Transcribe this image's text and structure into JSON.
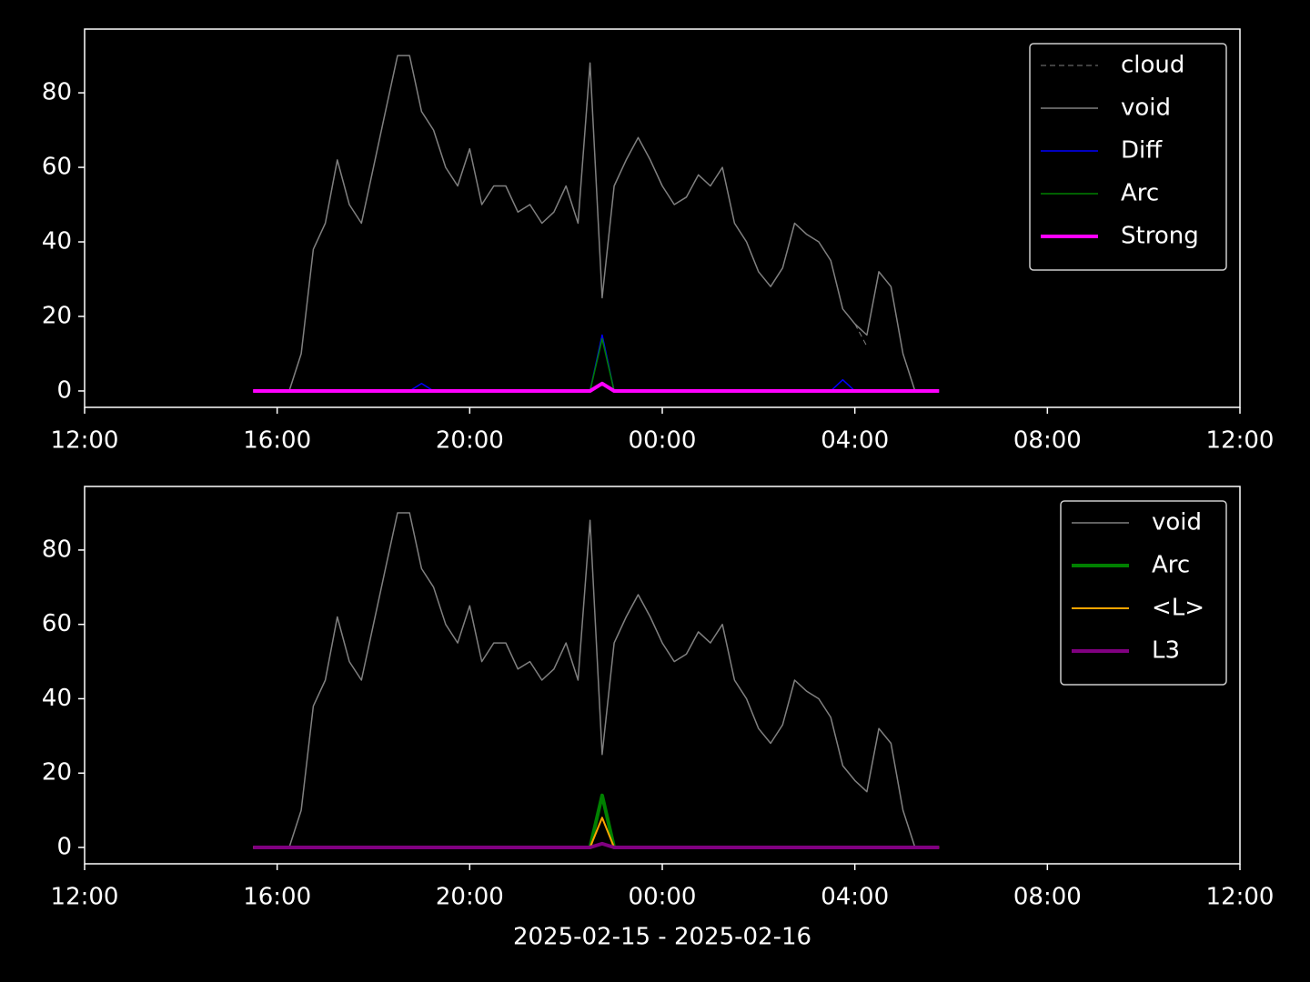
{
  "chart_data": [
    {
      "type": "line",
      "x": [
        15.5,
        15.75,
        16,
        16.25,
        16.5,
        16.75,
        17,
        17.25,
        17.5,
        17.75,
        18,
        18.25,
        18.5,
        18.75,
        19,
        19.25,
        19.5,
        19.75,
        20,
        20.25,
        20.5,
        20.75,
        21,
        21.25,
        21.5,
        21.75,
        22,
        22.25,
        22.5,
        22.75,
        23,
        23.25,
        23.5,
        23.75,
        24,
        24.25,
        24.5,
        24.75,
        25,
        25.25,
        25.5,
        25.75,
        26,
        26.25,
        26.5,
        26.75,
        27,
        27.25,
        27.5,
        27.75,
        28,
        28.25,
        28.5,
        28.75,
        29,
        29.25,
        29.5,
        29.75
      ],
      "series": [
        {
          "name": "cloud",
          "color": "#808080",
          "width": 1,
          "dashed": true,
          "values": [
            null,
            null,
            null,
            null,
            null,
            null,
            null,
            null,
            null,
            null,
            null,
            null,
            null,
            null,
            null,
            null,
            null,
            null,
            null,
            null,
            null,
            null,
            null,
            null,
            null,
            null,
            null,
            null,
            null,
            null,
            null,
            null,
            null,
            null,
            null,
            null,
            null,
            null,
            null,
            null,
            null,
            null,
            null,
            null,
            null,
            null,
            null,
            null,
            null,
            null,
            18,
            12,
            null,
            null,
            null,
            null,
            null,
            null
          ]
        },
        {
          "name": "void",
          "color": "#808080",
          "width": 1.5,
          "values": [
            0,
            0,
            0,
            0,
            10,
            38,
            45,
            62,
            50,
            45,
            60,
            75,
            90,
            90,
            75,
            70,
            60,
            55,
            65,
            50,
            55,
            55,
            48,
            50,
            45,
            48,
            55,
            45,
            88,
            25,
            55,
            62,
            68,
            62,
            55,
            50,
            52,
            58,
            55,
            60,
            45,
            40,
            32,
            28,
            33,
            45,
            42,
            40,
            35,
            22,
            18,
            15,
            32,
            28,
            10,
            0,
            null,
            null
          ]
        },
        {
          "name": "Diff",
          "color": "#0000ff",
          "width": 1.5,
          "values": [
            0,
            0,
            0,
            0,
            0,
            0,
            0,
            0,
            0,
            0,
            0,
            0,
            0,
            0,
            2,
            0,
            0,
            0,
            0,
            0,
            0,
            0,
            0,
            0,
            0,
            0,
            0,
            0,
            0,
            15,
            0,
            0,
            0,
            0,
            0,
            0,
            0,
            0,
            0,
            0,
            0,
            0,
            0,
            0,
            0,
            0,
            0,
            0,
            0,
            3,
            0,
            0,
            0,
            0,
            0,
            0,
            0,
            0
          ]
        },
        {
          "name": "Arc",
          "color": "#008000",
          "width": 1.5,
          "values": [
            0,
            0,
            0,
            0,
            0,
            0,
            0,
            0,
            0,
            0,
            0,
            0,
            0,
            0,
            0,
            0,
            0,
            0,
            0,
            0,
            0,
            0,
            0,
            0,
            0,
            0,
            0,
            0,
            0,
            14,
            0,
            0,
            0,
            0,
            0,
            0,
            0,
            0,
            0,
            0,
            0,
            0,
            0,
            0,
            0,
            0,
            0,
            0,
            0,
            0,
            0,
            0,
            0,
            0,
            0,
            0,
            0,
            0
          ]
        },
        {
          "name": "Strong",
          "color": "#ff00ff",
          "width": 4,
          "values": [
            0,
            0,
            0,
            0,
            0,
            0,
            0,
            0,
            0,
            0,
            0,
            0,
            0,
            0,
            0,
            0,
            0,
            0,
            0,
            0,
            0,
            0,
            0,
            0,
            0,
            0,
            0,
            0,
            0,
            2,
            0,
            0,
            0,
            0,
            0,
            0,
            0,
            0,
            0,
            0,
            0,
            0,
            0,
            0,
            0,
            0,
            0,
            0,
            0,
            0,
            0,
            0,
            0,
            0,
            0,
            0,
            0,
            0
          ]
        }
      ],
      "xlim": [
        12,
        36
      ],
      "xticks": [
        {
          "value": 12,
          "label": "12:00"
        },
        {
          "value": 16,
          "label": "16:00"
        },
        {
          "value": 20,
          "label": "20:00"
        },
        {
          "value": 24,
          "label": "00:00"
        },
        {
          "value": 28,
          "label": "04:00"
        },
        {
          "value": 32,
          "label": "08:00"
        },
        {
          "value": 36,
          "label": "12:00"
        }
      ],
      "ylim": [
        -4.4,
        97.1
      ],
      "yticks": [
        0,
        20,
        40,
        60,
        80
      ],
      "legend": "upper right"
    },
    {
      "type": "line",
      "x": [
        15.5,
        15.75,
        16,
        16.25,
        16.5,
        16.75,
        17,
        17.25,
        17.5,
        17.75,
        18,
        18.25,
        18.5,
        18.75,
        19,
        19.25,
        19.5,
        19.75,
        20,
        20.25,
        20.5,
        20.75,
        21,
        21.25,
        21.5,
        21.75,
        22,
        22.25,
        22.5,
        22.75,
        23,
        23.25,
        23.5,
        23.75,
        24,
        24.25,
        24.5,
        24.75,
        25,
        25.25,
        25.5,
        25.75,
        26,
        26.25,
        26.5,
        26.75,
        27,
        27.25,
        27.5,
        27.75,
        28,
        28.25,
        28.5,
        28.75,
        29,
        29.25,
        29.5,
        29.75
      ],
      "series": [
        {
          "name": "void",
          "color": "#808080",
          "width": 1.5,
          "values": [
            0,
            0,
            0,
            0,
            10,
            38,
            45,
            62,
            50,
            45,
            60,
            75,
            90,
            90,
            75,
            70,
            60,
            55,
            65,
            50,
            55,
            55,
            48,
            50,
            45,
            48,
            55,
            45,
            88,
            25,
            55,
            62,
            68,
            62,
            55,
            50,
            52,
            58,
            55,
            60,
            45,
            40,
            32,
            28,
            33,
            45,
            42,
            40,
            35,
            22,
            18,
            15,
            32,
            28,
            10,
            0,
            null,
            null
          ]
        },
        {
          "name": "Arc",
          "color": "#008000",
          "width": 4,
          "values": [
            0,
            0,
            0,
            0,
            0,
            0,
            0,
            0,
            0,
            0,
            0,
            0,
            0,
            0,
            0,
            0,
            0,
            0,
            0,
            0,
            0,
            0,
            0,
            0,
            0,
            0,
            0,
            0,
            0,
            14,
            0,
            0,
            0,
            0,
            0,
            0,
            0,
            0,
            0,
            0,
            0,
            0,
            0,
            0,
            0,
            0,
            0,
            0,
            0,
            0,
            0,
            0,
            0,
            0,
            0,
            0,
            0,
            0
          ]
        },
        {
          "name": "<L>",
          "color": "#ffa500",
          "width": 2,
          "values": [
            0,
            0,
            0,
            0,
            0,
            0,
            0,
            0,
            0,
            0,
            0,
            0,
            0,
            0,
            0,
            0,
            0,
            0,
            0,
            0,
            0,
            0,
            0,
            0,
            0,
            0,
            0,
            0,
            0,
            8,
            0,
            0,
            0,
            0,
            0,
            0,
            0,
            0,
            0,
            0,
            0,
            0,
            0,
            0,
            0,
            0,
            0,
            0,
            0,
            0,
            0,
            0,
            0,
            0,
            0,
            0,
            0,
            0
          ]
        },
        {
          "name": "L3",
          "color": "#800080",
          "width": 4,
          "values": [
            0,
            0,
            0,
            0,
            0,
            0,
            0,
            0,
            0,
            0,
            0,
            0,
            0,
            0,
            0,
            0,
            0,
            0,
            0,
            0,
            0,
            0,
            0,
            0,
            0,
            0,
            0,
            0,
            0,
            1,
            0,
            0,
            0,
            0,
            0,
            0,
            0,
            0,
            0,
            0,
            0,
            0,
            0,
            0,
            0,
            0,
            0,
            0,
            0,
            0,
            0,
            0,
            0,
            0,
            0,
            0,
            0,
            0
          ]
        }
      ],
      "xlim": [
        12,
        36
      ],
      "xticks": [
        {
          "value": 12,
          "label": "12:00"
        },
        {
          "value": 16,
          "label": "16:00"
        },
        {
          "value": 20,
          "label": "20:00"
        },
        {
          "value": 24,
          "label": "00:00"
        },
        {
          "value": 28,
          "label": "04:00"
        },
        {
          "value": 32,
          "label": "08:00"
        },
        {
          "value": 36,
          "label": "12:00"
        }
      ],
      "ylim": [
        -4.4,
        97.1
      ],
      "yticks": [
        0,
        20,
        40,
        60,
        80
      ],
      "legend": "upper right",
      "xlabel": "2025-02-15 - 2025-02-16"
    }
  ]
}
